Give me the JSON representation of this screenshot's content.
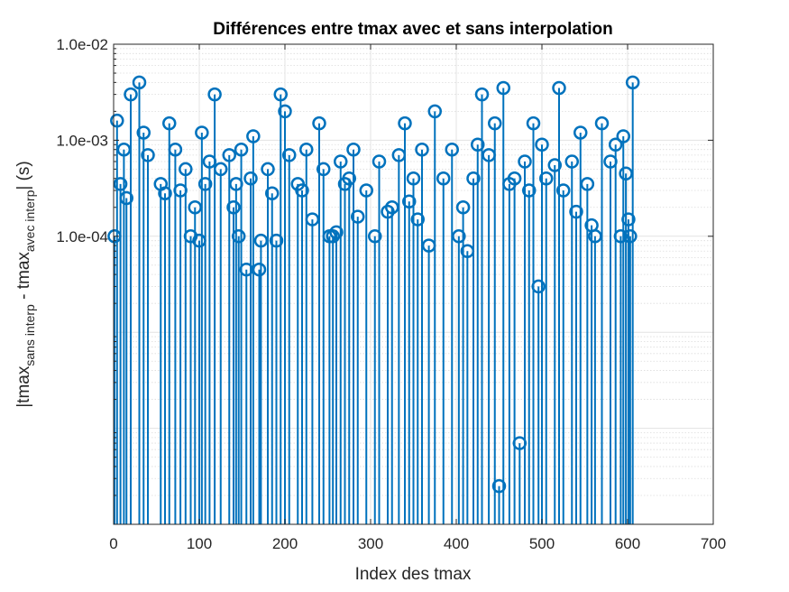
{
  "chart_data": {
    "type": "stem",
    "title": "Différences entre tmax avec et sans interpolation",
    "xlabel": "Index des tmax",
    "ylabel": {
      "main": "|tmax",
      "sub1": "sans interp",
      "mid": " - tmax",
      "sub2": "avec interp",
      "end": "| (s)"
    },
    "xlim": [
      0,
      700
    ],
    "x_ticks": [
      0,
      100,
      200,
      300,
      400,
      500,
      600,
      700
    ],
    "x_tick_labels": [
      "0",
      "100",
      "200",
      "300",
      "400",
      "500",
      "600",
      "700"
    ],
    "y_scale": "log",
    "ylim": [
      1e-07,
      0.01
    ],
    "y_ticks": [
      0.01,
      0.001,
      0.0001
    ],
    "y_tick_labels": [
      "1.0e-02",
      "1.0e-03",
      "1.0e-04"
    ],
    "grid": true,
    "minor_grid": true,
    "series": [
      {
        "color": "#0072BD",
        "marker": "circle",
        "x": [
          1,
          4,
          8,
          12,
          15,
          20,
          30,
          35,
          40,
          55,
          60,
          65,
          72,
          78,
          84,
          90,
          95,
          100,
          103,
          107,
          112,
          118,
          125,
          135,
          140,
          143,
          146,
          149,
          155,
          160,
          163,
          170,
          172,
          180,
          185,
          190,
          195,
          200,
          205,
          215,
          220,
          225,
          232,
          240,
          245,
          252,
          256,
          260,
          265,
          270,
          275,
          280,
          285,
          295,
          305,
          310,
          320,
          325,
          333,
          340,
          345,
          350,
          355,
          360,
          368,
          375,
          385,
          395,
          403,
          408,
          413,
          420,
          425,
          430,
          438,
          445,
          450,
          455,
          462,
          468,
          474,
          480,
          485,
          490,
          496,
          500,
          505,
          515,
          520,
          525,
          535,
          540,
          545,
          553,
          558,
          562,
          570,
          580,
          586,
          592,
          595,
          598,
          601,
          603,
          606
        ],
        "y": [
          0.0001,
          0.0016,
          0.00035,
          0.0008,
          0.00025,
          0.003,
          0.004,
          0.0012,
          0.0007,
          0.00035,
          0.00028,
          0.0015,
          0.0008,
          0.0003,
          0.0005,
          0.0001,
          0.0002,
          9e-05,
          0.0012,
          0.00035,
          0.0006,
          0.003,
          0.0005,
          0.0007,
          0.0002,
          0.00035,
          0.0001,
          0.0008,
          4.5e-05,
          0.0004,
          0.0011,
          4.5e-05,
          9e-05,
          0.0005,
          0.00028,
          9e-05,
          0.003,
          0.002,
          0.0007,
          0.00035,
          0.0003,
          0.0008,
          0.00015,
          0.0015,
          0.0005,
          0.0001,
          0.0001,
          0.00011,
          0.0006,
          0.00035,
          0.0004,
          0.0008,
          0.00016,
          0.0003,
          0.0001,
          0.0006,
          0.00018,
          0.0002,
          0.0007,
          0.0015,
          0.00023,
          0.0004,
          0.00015,
          0.0008,
          8e-05,
          0.002,
          0.0004,
          0.0008,
          0.0001,
          0.0002,
          7e-05,
          0.0004,
          0.0009,
          0.003,
          0.0007,
          0.0015,
          2.5e-07,
          0.0035,
          0.00035,
          0.0004,
          7e-07,
          0.0006,
          0.0003,
          0.0015,
          3e-05,
          0.0009,
          0.0004,
          0.00055,
          0.0035,
          0.0003,
          0.0006,
          0.00018,
          0.0012,
          0.00035,
          0.00013,
          0.0001,
          0.0015,
          0.0006,
          0.0009,
          0.0001,
          0.0011,
          0.00045,
          0.00015,
          0.0001,
          0.004
        ]
      }
    ]
  }
}
